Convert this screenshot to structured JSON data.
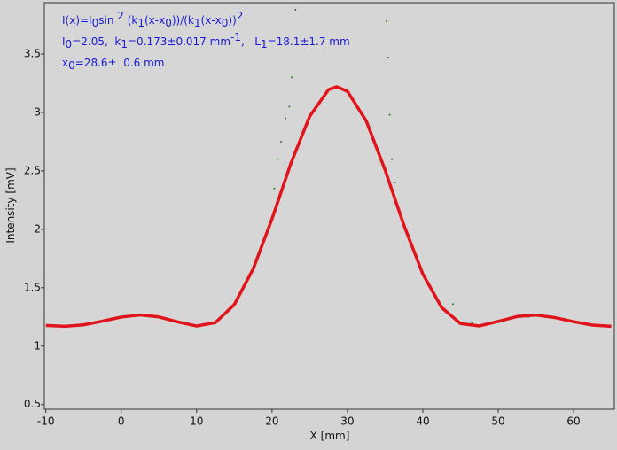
{
  "chart_data": {
    "type": "scatter",
    "x_label": "X [mm]",
    "y_label": "Intensity [mV]",
    "annotations": [
      [
        {
          "t": "I(x)=I"
        },
        {
          "t": "0",
          "s": "sub"
        },
        {
          "t": "sin "
        },
        {
          "t": "2",
          "s": "sup"
        },
        {
          "t": " (k"
        },
        {
          "t": "1",
          "s": "sub"
        },
        {
          "t": "(x-x"
        },
        {
          "t": "0",
          "s": "sub"
        },
        {
          "t": "))/(k"
        },
        {
          "t": "1",
          "s": "sub"
        },
        {
          "t": "(x-x"
        },
        {
          "t": "0",
          "s": "sub"
        },
        {
          "t": "))"
        },
        {
          "t": "2",
          "s": "sup"
        }
      ],
      [
        {
          "t": "I"
        },
        {
          "t": "0",
          "s": "sub"
        },
        {
          "t": "=2.05,  k"
        },
        {
          "t": "1",
          "s": "sub"
        },
        {
          "t": "=0.173±0.017 mm"
        },
        {
          "t": "-1",
          "s": "sup"
        },
        {
          "t": ",   L"
        },
        {
          "t": "1",
          "s": "sub"
        },
        {
          "t": "=18.1±1.7 mm"
        }
      ],
      [
        {
          "t": "x"
        },
        {
          "t": "0",
          "s": "sub"
        },
        {
          "t": "=28.6±  0.6 mm"
        }
      ]
    ],
    "xlim": [
      -10.2,
      65.4
    ],
    "ylim": [
      0.46,
      3.94
    ],
    "xticks": [
      -10,
      0,
      10,
      20,
      30,
      40,
      50,
      60
    ],
    "yticks": [
      0.5,
      1,
      1.5,
      2,
      2.5,
      3,
      3.5
    ],
    "series": [
      {
        "color": "#2a7a1a",
        "style": "dots",
        "x": [
          20.3,
          20.7,
          21.2,
          21.8,
          22.3,
          22.6,
          23.1,
          35.2,
          35.4,
          35.6,
          35.9,
          36.3,
          38.2,
          44.0,
          46.5,
          54.0
        ],
        "values": [
          2.35,
          2.6,
          2.75,
          2.95,
          3.05,
          3.3,
          3.88,
          3.78,
          3.47,
          2.98,
          2.6,
          2.4,
          1.95,
          1.36,
          1.2,
          1.25
        ]
      },
      {
        "color": "#e0141a",
        "style": "line",
        "x": [
          -10,
          -7.5,
          -5,
          -2.5,
          0,
          2.5,
          5,
          7.5,
          10,
          12.5,
          15,
          17.5,
          20,
          22.5,
          25,
          27.5,
          28.6,
          30,
          32.5,
          35,
          37.5,
          40,
          42.5,
          45,
          47.5,
          50,
          52.5,
          55,
          57.5,
          60,
          62.5,
          65
        ],
        "values": [
          1.177,
          1.17,
          1.182,
          1.214,
          1.249,
          1.267,
          1.25,
          1.207,
          1.172,
          1.202,
          1.356,
          1.661,
          2.09,
          2.564,
          2.968,
          3.196,
          3.22,
          3.181,
          2.927,
          2.507,
          2.033,
          1.617,
          1.33,
          1.193,
          1.173,
          1.212,
          1.254,
          1.266,
          1.245,
          1.209,
          1.18,
          1.17
        ]
      }
    ]
  }
}
